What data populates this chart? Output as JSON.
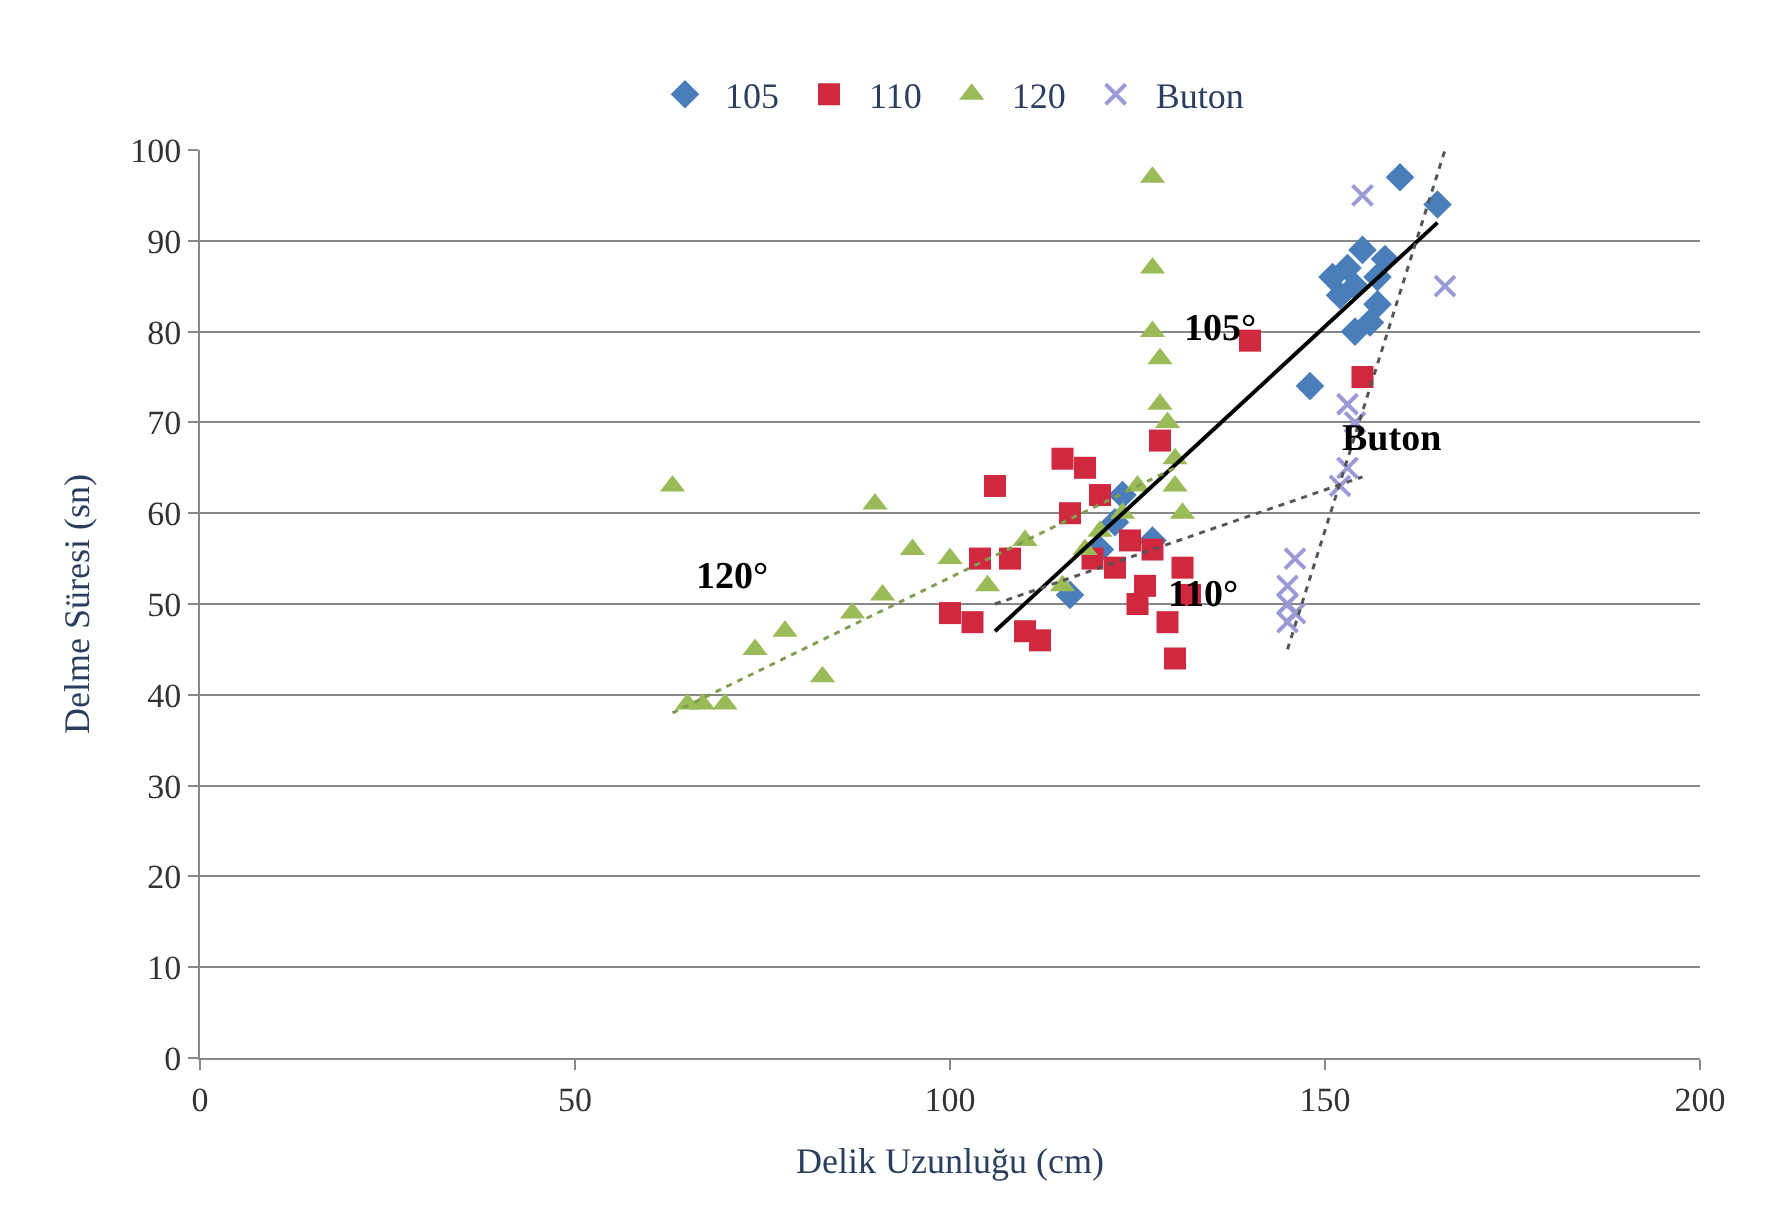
{
  "chart_data": {
    "type": "scatter",
    "xlabel": "Delik Uzunluğu (cm)",
    "ylabel": "Delme Süresi (sn)",
    "xlim": [
      0,
      200
    ],
    "xticks": [
      0,
      50,
      100,
      150,
      200
    ],
    "ylim": [
      0,
      100
    ],
    "yticks": [
      0,
      10,
      20,
      30,
      40,
      50,
      60,
      70,
      80,
      90,
      100
    ],
    "grid": "y",
    "legend": "top",
    "series": [
      {
        "name": "105",
        "color": "#4a7ebb",
        "marker": "diamond",
        "x": [
          116,
          120,
          122,
          123,
          127,
          148,
          151,
          152,
          153,
          154,
          154,
          155,
          156,
          157,
          157,
          158,
          160,
          165
        ],
        "values": [
          51,
          56,
          59,
          62,
          57,
          74,
          86,
          84,
          87,
          85,
          80,
          89,
          81,
          83,
          86,
          88,
          97,
          94
        ]
      },
      {
        "name": "110",
        "color": "#d0283f",
        "marker": "square",
        "x": [
          100,
          103,
          104,
          106,
          108,
          110,
          112,
          115,
          116,
          118,
          119,
          120,
          122,
          124,
          125,
          126,
          127,
          128,
          129,
          130,
          131,
          132,
          140,
          155
        ],
        "values": [
          49,
          48,
          55,
          63,
          55,
          47,
          46,
          66,
          60,
          65,
          55,
          62,
          54,
          57,
          50,
          52,
          56,
          68,
          48,
          44,
          54,
          51,
          79,
          75
        ]
      },
      {
        "name": "120",
        "color": "#9bbb59",
        "marker": "triangle",
        "x": [
          63,
          65,
          67,
          70,
          74,
          78,
          83,
          87,
          90,
          91,
          95,
          100,
          105,
          110,
          115,
          118,
          120,
          123,
          125,
          127,
          127,
          127,
          128,
          128,
          129,
          130,
          130,
          131
        ],
        "values": [
          63,
          39,
          39,
          39,
          45,
          47,
          42,
          49,
          61,
          51,
          56,
          55,
          52,
          57,
          52,
          56,
          58,
          60,
          63,
          97,
          87,
          80,
          77,
          72,
          70,
          66,
          63,
          60
        ]
      },
      {
        "name": "Buton",
        "color": "#9a9ad6",
        "marker": "cross",
        "x": [
          145,
          145,
          145,
          146,
          146,
          152,
          153,
          153,
          154,
          155,
          166
        ],
        "values": [
          48,
          50,
          52,
          49,
          55,
          63,
          65,
          72,
          70,
          95,
          85
        ]
      },
      {
        "type": "line",
        "color": "#000000",
        "line_style": "solid",
        "marker": "none",
        "x": [
          106,
          165
        ],
        "values": [
          47,
          92
        ]
      },
      {
        "type": "line",
        "color": "#555555",
        "line_style": "dotted",
        "marker": "none",
        "x": [
          106,
          155
        ],
        "values": [
          50,
          64
        ]
      },
      {
        "type": "line",
        "color": "#7f9f4f",
        "line_style": "dotted",
        "marker": "none",
        "x": [
          63,
          130
        ],
        "values": [
          38,
          65
        ]
      },
      {
        "type": "line",
        "color": "#555555",
        "line_style": "dotted",
        "marker": "none",
        "x": [
          145,
          166
        ],
        "values": [
          45,
          100
        ]
      }
    ],
    "annotations": [
      "105°",
      "110°",
      "120°",
      "Buton"
    ]
  }
}
